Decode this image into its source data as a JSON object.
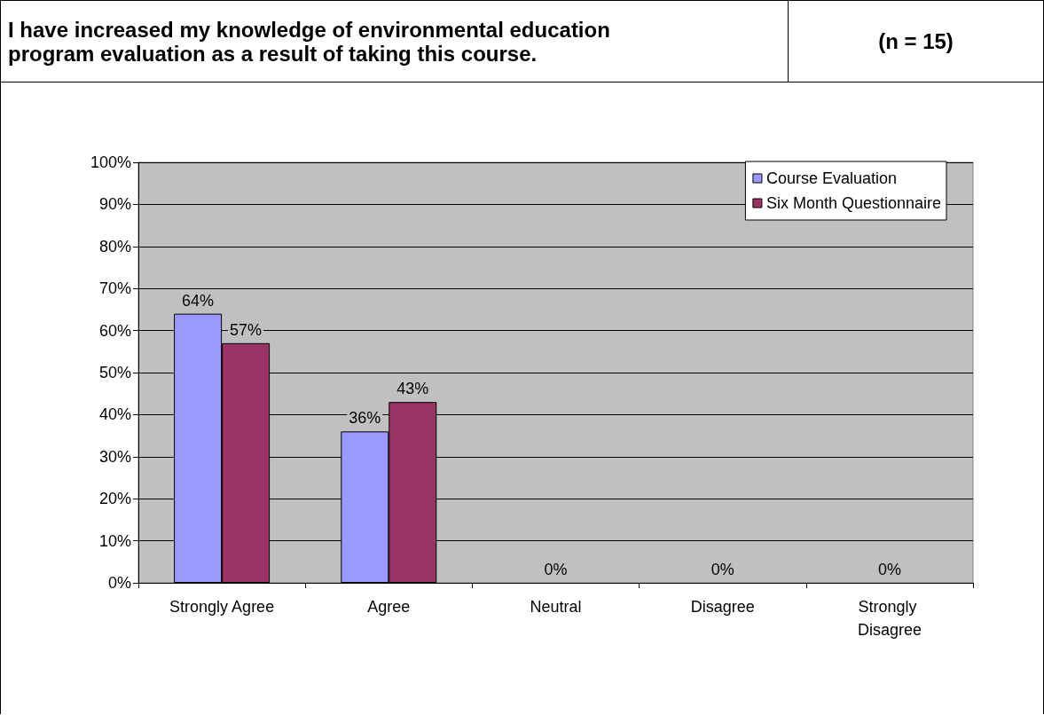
{
  "chart_data": {
    "type": "bar",
    "title": "I have increased my knowledge of environmental education program evaluation as a result of taking this course.",
    "subtitle": "(n = 15)",
    "categories": [
      "Strongly Agree",
      "Agree",
      "Neutral",
      "Disagree",
      "Strongly Disagree"
    ],
    "series": [
      {
        "name": "Course Evaluation",
        "color": "#9999ff",
        "values": [
          64,
          36,
          0,
          0,
          0
        ],
        "value_labels": [
          "64%",
          "36%",
          null,
          null,
          null
        ]
      },
      {
        "name": "Six Month Questionnaire",
        "color": "#993366",
        "values": [
          57,
          43,
          0,
          0,
          0
        ],
        "value_labels": [
          "57%",
          "43%",
          "0%",
          "0%",
          "0%"
        ]
      }
    ],
    "ylim": [
      0,
      100
    ],
    "yticks": [
      {
        "value": 0,
        "label": "0%"
      },
      {
        "value": 10,
        "label": "10%"
      },
      {
        "value": 20,
        "label": "20%"
      },
      {
        "value": 30,
        "label": "30%"
      },
      {
        "value": 40,
        "label": "40%"
      },
      {
        "value": 50,
        "label": "50%"
      },
      {
        "value": 60,
        "label": "60%"
      },
      {
        "value": 70,
        "label": "70%"
      },
      {
        "value": 80,
        "label": "80%"
      },
      {
        "value": 90,
        "label": "90%"
      },
      {
        "value": 100,
        "label": "100%"
      }
    ],
    "grid": "y",
    "legend": "top right"
  }
}
